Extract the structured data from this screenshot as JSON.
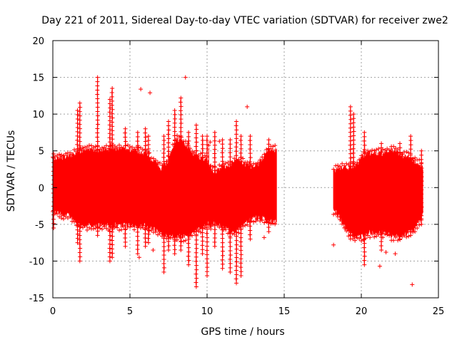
{
  "chart_data": {
    "type": "scatter",
    "title": "Day 221 of 2011, Sidereal Day-to-day VTEC variation (SDTVAR) for receiver zwe2",
    "xlabel": "GPS time / hours",
    "ylabel": "SDTVAR / TECUs",
    "xlim": [
      0,
      25
    ],
    "ylim": [
      -15,
      20
    ],
    "x_ticks": [
      0,
      5,
      10,
      15,
      20,
      25
    ],
    "y_ticks": [
      -15,
      -10,
      -5,
      0,
      5,
      10,
      15,
      20
    ],
    "grid": true,
    "marker": "+",
    "color": "#ff0000",
    "series": [
      {
        "name": "SDTVAR",
        "segments": [
          {
            "x_start": 0.0,
            "x_end": 10.1,
            "envelope": [
              [
                0.0,
                -3.5,
                4.0
              ],
              [
                0.5,
                -4.0,
                4.5
              ],
              [
                1.0,
                -4.0,
                4.5
              ],
              [
                1.5,
                -5.0,
                5.0
              ],
              [
                2.0,
                -5.5,
                5.5
              ],
              [
                3.0,
                -5.5,
                5.5
              ],
              [
                4.0,
                -5.5,
                5.5
              ],
              [
                5.0,
                -5.5,
                5.5
              ],
              [
                6.0,
                -5.5,
                5.0
              ],
              [
                6.5,
                -6.0,
                4.0
              ],
              [
                7.0,
                -6.5,
                3.0
              ],
              [
                7.5,
                -7.0,
                4.0
              ],
              [
                8.0,
                -7.0,
                7.0
              ],
              [
                8.5,
                -7.0,
                6.5
              ],
              [
                9.0,
                -6.5,
                5.0
              ],
              [
                9.5,
                -6.0,
                4.5
              ],
              [
                10.1,
                -5.0,
                4.0
              ]
            ]
          },
          {
            "x_start": 10.1,
            "x_end": 14.5,
            "envelope": [
              [
                10.1,
                -6.0,
                3.5
              ],
              [
                10.5,
                -5.0,
                2.5
              ],
              [
                11.0,
                -5.5,
                3.0
              ],
              [
                11.5,
                -6.5,
                3.5
              ],
              [
                12.0,
                -6.0,
                4.0
              ],
              [
                12.5,
                -5.0,
                3.5
              ],
              [
                13.0,
                -4.5,
                3.0
              ],
              [
                13.5,
                -4.5,
                4.0
              ],
              [
                14.0,
                -5.0,
                5.5
              ],
              [
                14.5,
                -5.0,
                5.5
              ]
            ]
          },
          {
            "x_start": 18.2,
            "x_end": 24.0,
            "envelope": [
              [
                18.2,
                -3.5,
                2.5
              ],
              [
                18.5,
                -4.0,
                3.0
              ],
              [
                19.0,
                -6.0,
                3.0
              ],
              [
                19.5,
                -7.0,
                3.0
              ],
              [
                20.0,
                -7.0,
                4.5
              ],
              [
                20.5,
                -6.5,
                5.0
              ],
              [
                21.0,
                -6.5,
                5.0
              ],
              [
                21.5,
                -6.5,
                5.0
              ],
              [
                22.0,
                -7.0,
                5.5
              ],
              [
                22.5,
                -7.0,
                5.0
              ],
              [
                23.0,
                -6.5,
                4.5
              ],
              [
                23.5,
                -6.0,
                4.0
              ],
              [
                24.0,
                -4.0,
                3.0
              ]
            ]
          }
        ],
        "spikes": [
          [
            0.05,
            -5.5,
            4.6
          ],
          [
            1.6,
            -7.5,
            10.5
          ],
          [
            1.75,
            -10.0,
            11.5
          ],
          [
            2.9,
            -6.5,
            15.0
          ],
          [
            3.7,
            -10.0,
            12.0
          ],
          [
            3.85,
            -9.5,
            13.5
          ],
          [
            4.7,
            -8.0,
            8.0
          ],
          [
            5.5,
            -9.0,
            7.5
          ],
          [
            6.0,
            -8.0,
            8.0
          ],
          [
            6.2,
            -7.5,
            7.0
          ],
          [
            7.2,
            -11.5,
            7.0
          ],
          [
            7.5,
            -8.5,
            9.0
          ],
          [
            7.9,
            -9.0,
            10.5
          ],
          [
            8.3,
            -8.5,
            12.2
          ],
          [
            8.8,
            -10.5,
            7.5
          ],
          [
            9.3,
            -13.5,
            8.5
          ],
          [
            9.7,
            -9.0,
            7.0
          ],
          [
            10.0,
            -12.0,
            7.0
          ],
          [
            10.5,
            -8.0,
            7.5
          ],
          [
            11.0,
            -11.0,
            6.5
          ],
          [
            11.5,
            -11.5,
            6.5
          ],
          [
            11.9,
            -13.0,
            9.0
          ],
          [
            12.2,
            -12.0,
            7.0
          ],
          [
            12.8,
            -7.0,
            7.0
          ],
          [
            14.0,
            -6.0,
            6.5
          ],
          [
            19.3,
            -7.0,
            11.0
          ],
          [
            19.5,
            -6.5,
            10.0
          ],
          [
            20.2,
            -10.5,
            7.5
          ],
          [
            21.3,
            -8.5,
            6.0
          ],
          [
            22.5,
            -7.0,
            6.0
          ],
          [
            23.2,
            -6.5,
            7.0
          ],
          [
            23.9,
            -5.0,
            5.0
          ]
        ],
        "outliers": [
          [
            5.7,
            13.4
          ],
          [
            6.3,
            12.9
          ],
          [
            8.6,
            15.0
          ],
          [
            12.6,
            11.0
          ],
          [
            10.2,
            6.2
          ],
          [
            10.8,
            6.3
          ],
          [
            13.7,
            -6.8
          ],
          [
            18.2,
            -7.8
          ],
          [
            21.2,
            -10.7
          ],
          [
            21.6,
            -8.8
          ],
          [
            23.3,
            -13.2
          ],
          [
            6.5,
            -8.5
          ],
          [
            5.6,
            -9.5
          ],
          [
            22.2,
            -9.0
          ]
        ]
      }
    ]
  }
}
